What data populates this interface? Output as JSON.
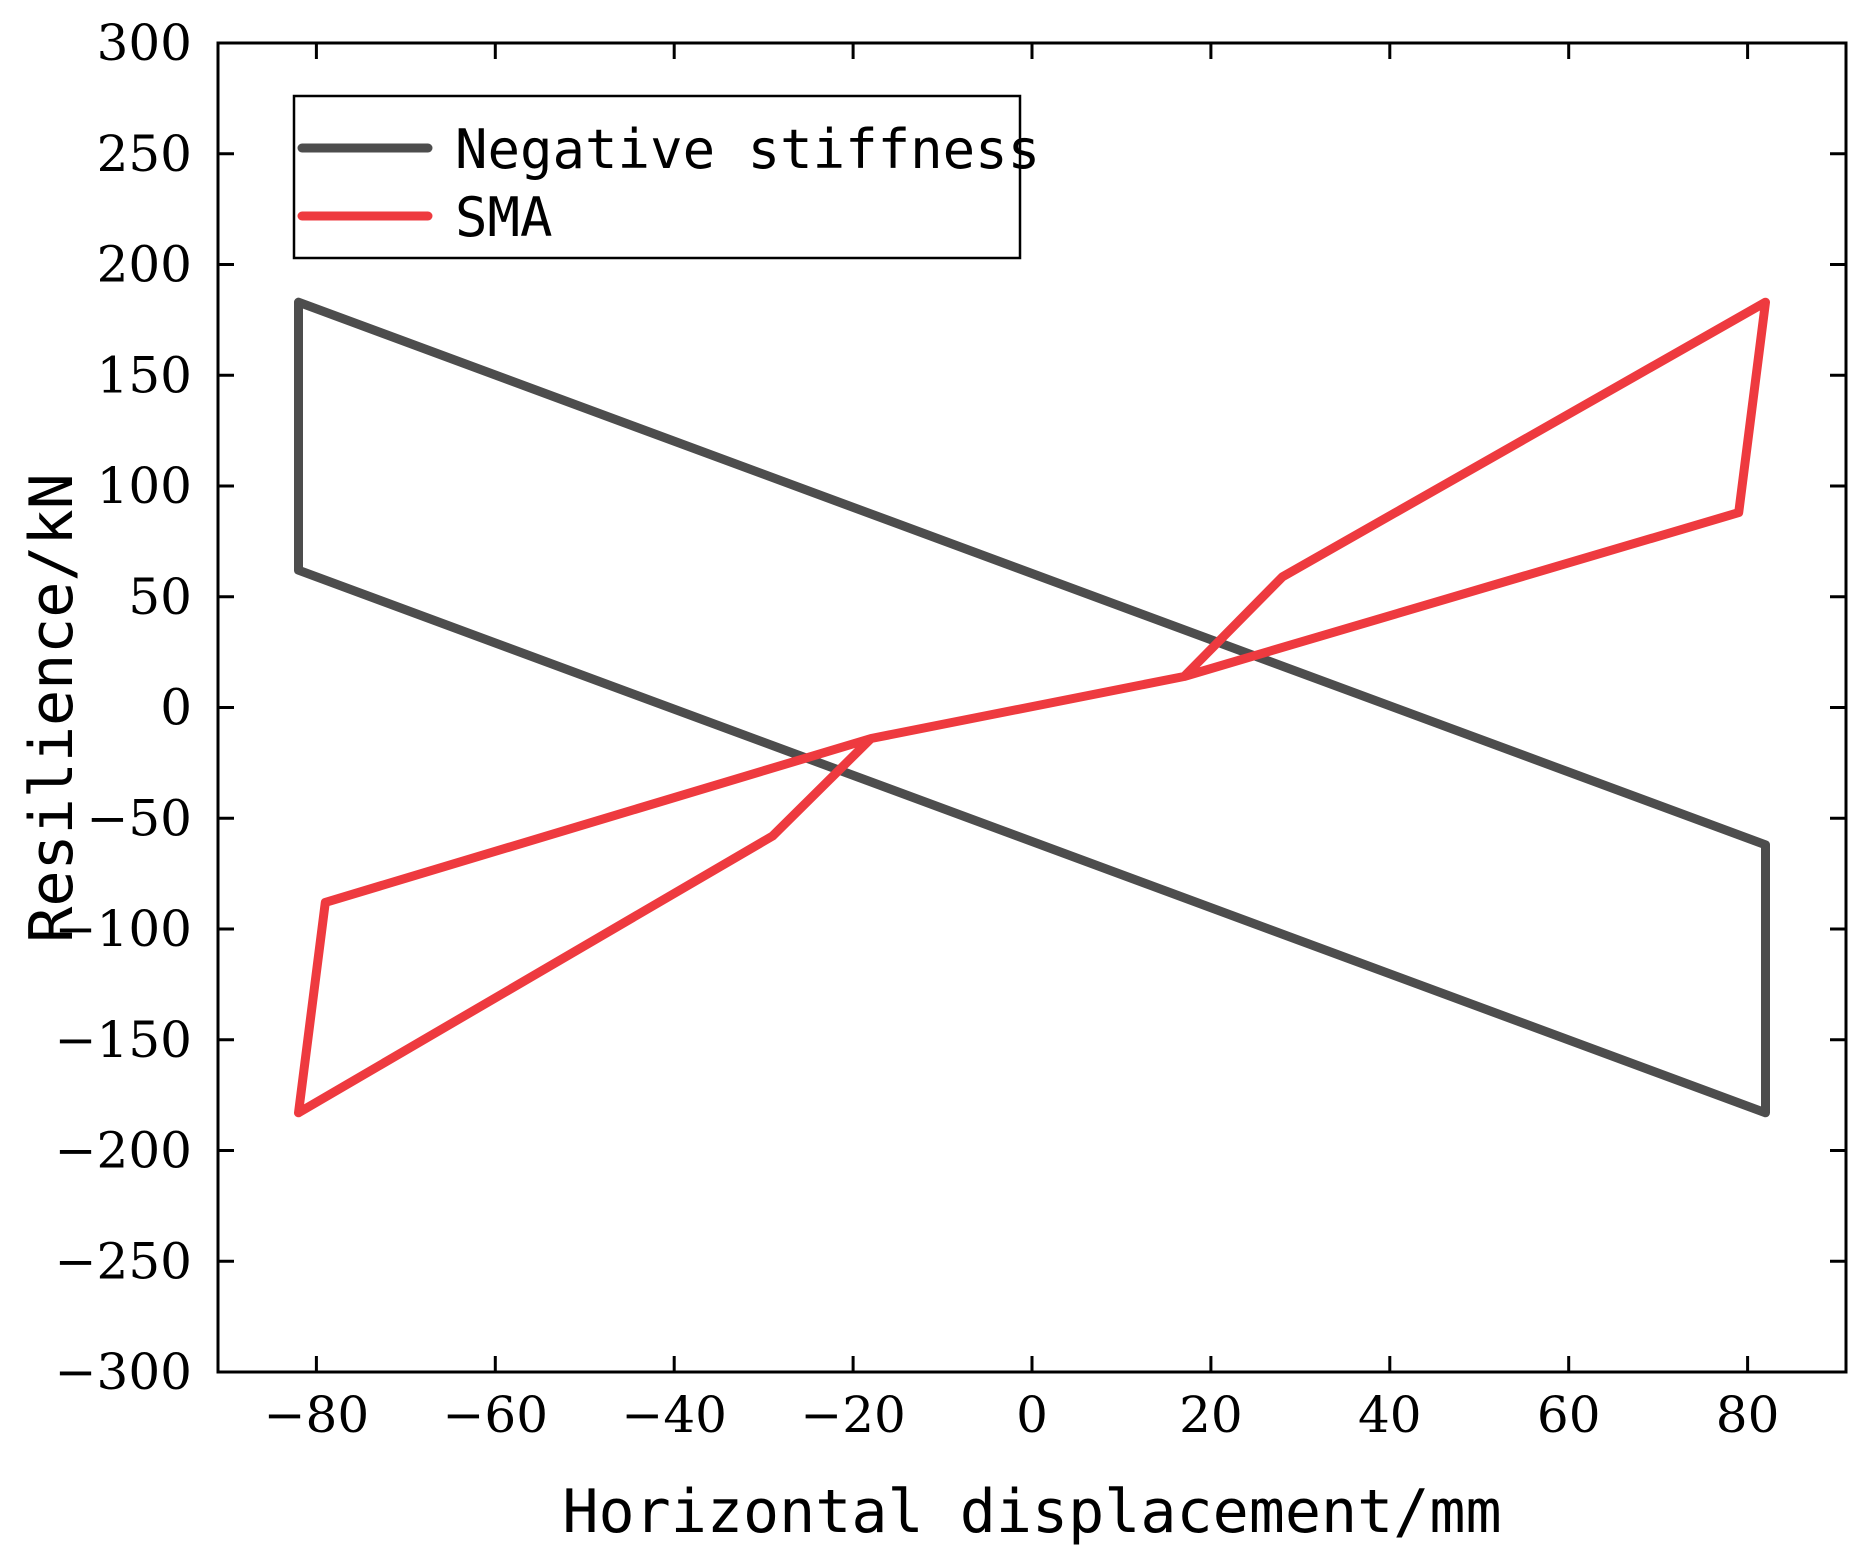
{
  "chart_data": {
    "type": "line",
    "title": "",
    "xlabel": "Horizontal displacement/mm",
    "ylabel": "Resilience/kN",
    "xlim": [
      -91,
      91
    ],
    "ylim": [
      -300,
      300
    ],
    "xticks": [
      -80,
      -60,
      -40,
      -20,
      0,
      20,
      40,
      60,
      80
    ],
    "yticks": [
      300,
      250,
      200,
      150,
      100,
      50,
      0,
      -50,
      -100,
      -150,
      -200,
      -250,
      -300
    ],
    "xtick_labels": [
      "−80",
      "−60",
      "−40",
      "−20",
      "0",
      "20",
      "40",
      "60",
      "80"
    ],
    "ytick_labels": [
      "300",
      "250",
      "200",
      "150",
      "100",
      "50",
      "0",
      "−50",
      "−100",
      "−150",
      "−200",
      "−250",
      "−300"
    ],
    "grid": false,
    "legend_position": "top-left",
    "series": [
      {
        "name": "Negative stiffness",
        "color": "#4d4d4d",
        "x": [
          -82,
          82,
          82,
          -82,
          -82
        ],
        "y": [
          183,
          -62,
          -183,
          62,
          183
        ]
      },
      {
        "name": "SMA",
        "color": "#ee3a3f",
        "x": [
          -82,
          -29,
          -18,
          17,
          28,
          82,
          79,
          17,
          -18,
          -79,
          -82
        ],
        "y": [
          -183,
          -58,
          -14,
          14,
          59,
          183,
          88,
          14,
          -14,
          -88,
          -183
        ]
      }
    ]
  }
}
